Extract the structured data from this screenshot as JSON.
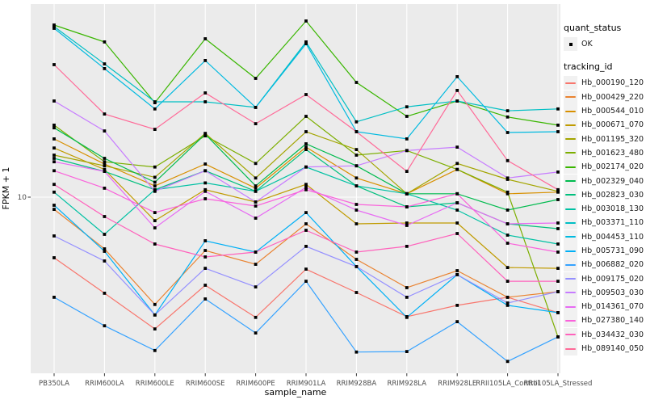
{
  "figure": {
    "background": "#FFFFFF",
    "panel_bg": "#EBEBEB",
    "grid_color": "#FFFFFF",
    "axis_text_color": "#4D4D4D",
    "tick_mark_color": "#333333",
    "point_color": "#000000",
    "legend_key_bg": "#F1F1F1"
  },
  "axes": {
    "x_title": "sample_name",
    "y_title": "FPKM + 1",
    "y_tick_label": "10"
  },
  "legend": {
    "quant_status_title": "quant_status",
    "quant_status_items": [
      "OK"
    ],
    "tracking_id_title": "tracking_id"
  },
  "chart_data": {
    "type": "line",
    "title": "",
    "xlabel": "sample_name",
    "ylabel": "FPKM + 1",
    "y_scale": "log10",
    "y_ticks": [
      10
    ],
    "ylim_approx": [
      1.3,
      95
    ],
    "grid": true,
    "legend_position": "right",
    "point_shape": "filled-square",
    "categories": [
      "PB350LA",
      "RRIM600LA",
      "RRIM600LE",
      "RRIM600SE",
      "RRIM600PE",
      "RRIM901LA",
      "RRIM928BA",
      "RRIM928LA",
      "RRIM928LE",
      "RRII105LA_Control",
      "RRII105LA_Stressed"
    ],
    "series": [
      {
        "name": "Hb_000190_120",
        "color": "#F8766D",
        "quant_status": "OK",
        "values": [
          4.94,
          3.27,
          2.16,
          3.59,
          2.47,
          4.33,
          3.3,
          2.49,
          2.84,
          3.12,
          2.61
        ]
      },
      {
        "name": "Hb_000429_220",
        "color": "#EA8331",
        "quant_status": "OK",
        "values": [
          8.68,
          5.48,
          2.87,
          5.38,
          4.58,
          7.33,
          4.85,
          3.49,
          4.25,
          3.12,
          3.33
        ]
      },
      {
        "name": "Hb_000544_010",
        "color": "#D89000",
        "quant_status": "OK",
        "values": [
          19.7,
          14.7,
          11.4,
          14.7,
          11.1,
          17.9,
          12.5,
          10.4,
          13.8,
          10.4,
          10.6
        ]
      },
      {
        "name": "Hb_000671_070",
        "color": "#C09B00",
        "quant_status": "OK",
        "values": [
          17.7,
          13.8,
          7.61,
          10.9,
          9.45,
          11.6,
          7.33,
          7.4,
          7.4,
          4.41,
          4.37
        ]
      },
      {
        "name": "Hb_001195_320",
        "color": "#A3A500",
        "quant_status": "OK",
        "values": [
          16.3,
          14.4,
          12.6,
          21.0,
          12.5,
          21.4,
          17.4,
          10.4,
          14.8,
          12.3,
          10.7
        ]
      },
      {
        "name": "Hb_001623_480",
        "color": "#7CAE00",
        "quant_status": "OK",
        "values": [
          23.1,
          15.1,
          14.2,
          20.4,
          14.8,
          25.6,
          16.3,
          17.2,
          13.8,
          10.6,
          1.97
        ]
      },
      {
        "name": "Hb_002174_020",
        "color": "#39B600",
        "quant_status": "OK",
        "values": [
          74.0,
          60.8,
          30.0,
          63.1,
          39.8,
          77.6,
          38.0,
          25.6,
          30.6,
          25.4,
          23.1
        ]
      },
      {
        "name": "Hb_002329_040",
        "color": "#00BB4E",
        "quant_status": "OK",
        "values": [
          22.4,
          15.7,
          11.9,
          20.8,
          11.4,
          18.6,
          14.4,
          10.4,
          10.4,
          8.6,
          9.72
        ]
      },
      {
        "name": "Hb_002823_030",
        "color": "#00BF7D",
        "quant_status": "OK",
        "values": [
          15.7,
          13.5,
          10.9,
          13.6,
          10.7,
          17.4,
          11.4,
          8.93,
          9.36,
          7.33,
          6.93
        ]
      },
      {
        "name": "Hb_003018_130",
        "color": "#00C1A3",
        "quant_status": "OK",
        "values": [
          10.6,
          6.49,
          10.9,
          11.8,
          10.7,
          14.2,
          11.4,
          10.4,
          8.6,
          6.43,
          5.8
        ]
      },
      {
        "name": "Hb_003371_110",
        "color": "#00BFC4",
        "quant_status": "OK",
        "values": [
          72.7,
          47.1,
          30.3,
          30.3,
          28.4,
          60.8,
          24.0,
          28.6,
          30.6,
          27.3,
          27.9
        ]
      },
      {
        "name": "Hb_004453_110",
        "color": "#00BAE0",
        "quant_status": "OK",
        "values": [
          71.3,
          44.6,
          27.9,
          49.0,
          28.4,
          59.6,
          21.4,
          19.7,
          40.6,
          21.2,
          21.4
        ]
      },
      {
        "name": "Hb_005731_090",
        "color": "#00B0F6",
        "quant_status": "OK",
        "values": [
          9.1,
          5.33,
          2.54,
          6.02,
          5.28,
          8.36,
          4.46,
          2.47,
          4.06,
          2.84,
          2.61
        ]
      },
      {
        "name": "Hb_006882_020",
        "color": "#35A2FF",
        "quant_status": "OK",
        "values": [
          3.12,
          2.24,
          1.68,
          3.06,
          2.06,
          3.76,
          1.65,
          1.66,
          2.35,
          1.48,
          1.97
        ]
      },
      {
        "name": "Hb_009175_020",
        "color": "#9590FF",
        "quant_status": "OK",
        "values": [
          6.37,
          4.76,
          2.54,
          4.37,
          3.52,
          5.64,
          4.46,
          3.12,
          4.06,
          2.92,
          3.33
        ]
      },
      {
        "name": "Hb_009503_030",
        "color": "#C77CFF",
        "quant_status": "OK",
        "values": [
          30.6,
          21.6,
          10.7,
          13.6,
          9.45,
          14.2,
          14.4,
          17.2,
          17.9,
          12.5,
          13.4
        ]
      },
      {
        "name": "Hb_014361_070",
        "color": "#E76BF3",
        "quant_status": "OK",
        "values": [
          15.1,
          13.5,
          7.0,
          10.7,
          7.83,
          11.2,
          8.6,
          7.2,
          9.36,
          7.33,
          7.4
        ]
      },
      {
        "name": "Hb_027380_140",
        "color": "#FA62DB",
        "quant_status": "OK",
        "values": [
          13.6,
          11.1,
          8.36,
          9.81,
          9.02,
          10.9,
          9.19,
          8.93,
          10.4,
          5.85,
          5.28
        ]
      },
      {
        "name": "Hb_034432_030",
        "color": "#FF62BC",
        "quant_status": "OK",
        "values": [
          11.6,
          7.98,
          5.8,
          4.99,
          5.28,
          6.8,
          5.28,
          5.64,
          6.55,
          3.76,
          3.76
        ]
      },
      {
        "name": "Hb_089140_050",
        "color": "#FF6A98",
        "quant_status": "OK",
        "values": [
          46.7,
          26.3,
          22.0,
          33.6,
          23.5,
          33.0,
          21.4,
          13.5,
          34.6,
          15.3,
          10.9
        ]
      }
    ]
  }
}
